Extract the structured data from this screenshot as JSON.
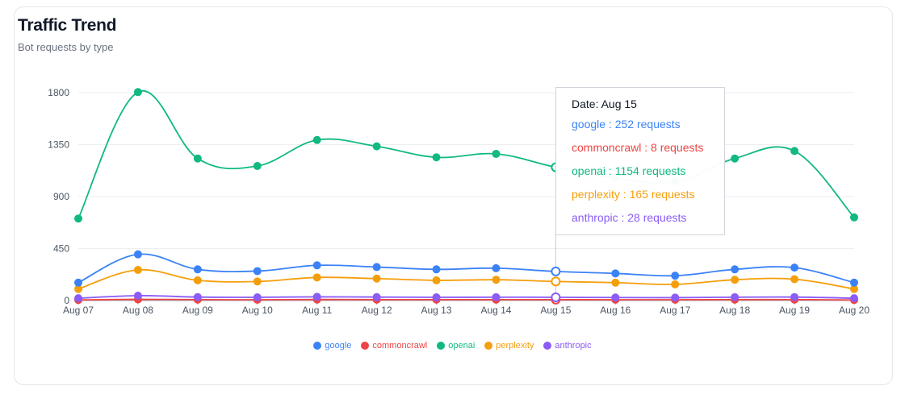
{
  "header": {
    "title": "Traffic Trend",
    "subtitle": "Bot requests by type"
  },
  "tooltip": {
    "date_label": "Date: Aug 15",
    "rows": [
      {
        "name": "google",
        "text": "google : 252 requests"
      },
      {
        "name": "commoncrawl",
        "text": "commoncrawl : 8 requests"
      },
      {
        "name": "openai",
        "text": "openai : 1154 requests"
      },
      {
        "name": "perplexity",
        "text": "perplexity : 165 requests"
      },
      {
        "name": "anthropic",
        "text": "anthropic : 28 requests"
      }
    ]
  },
  "chart_data": {
    "type": "line",
    "title": "Traffic Trend",
    "subtitle": "Bot requests by type",
    "x": [
      "Aug 07",
      "Aug 08",
      "Aug 09",
      "Aug 10",
      "Aug 11",
      "Aug 12",
      "Aug 13",
      "Aug 14",
      "Aug 15",
      "Aug 16",
      "Aug 17",
      "Aug 18",
      "Aug 19",
      "Aug 20"
    ],
    "yticks": [
      0,
      450,
      900,
      1350,
      1800
    ],
    "ylim": [
      0,
      1800
    ],
    "grid": true,
    "legend": "bottom",
    "active_index": 8,
    "series": [
      {
        "name": "google",
        "color": "#3b82f6",
        "values": [
          155,
          400,
          270,
          255,
          305,
          290,
          270,
          280,
          252,
          235,
          215,
          270,
          285,
          155
        ]
      },
      {
        "name": "commoncrawl",
        "color": "#ef4444",
        "values": [
          5,
          10,
          8,
          7,
          9,
          8,
          8,
          8,
          8,
          7,
          7,
          8,
          8,
          5
        ]
      },
      {
        "name": "openai",
        "color": "#10b981",
        "values": [
          710,
          1805,
          1230,
          1165,
          1390,
          1335,
          1240,
          1270,
          1154,
          1060,
          1030,
          1230,
          1295,
          720
        ]
      },
      {
        "name": "perplexity",
        "color": "#f59e0b",
        "values": [
          100,
          265,
          175,
          165,
          200,
          190,
          175,
          180,
          165,
          155,
          140,
          180,
          185,
          100
        ]
      },
      {
        "name": "anthropic",
        "color": "#8b5cf6",
        "values": [
          20,
          42,
          30,
          28,
          32,
          30,
          28,
          29,
          28,
          26,
          25,
          29,
          30,
          20
        ]
      }
    ]
  }
}
